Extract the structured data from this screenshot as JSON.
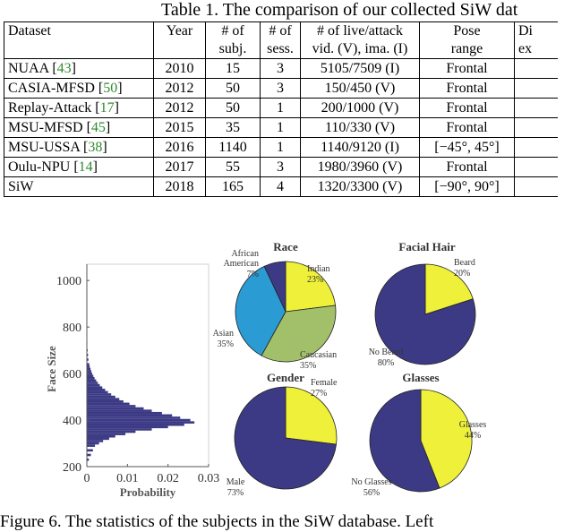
{
  "table": {
    "caption": "Table 1. The comparison of our collected SiW dat",
    "headers": [
      [
        "Dataset"
      ],
      [
        "Year"
      ],
      [
        "# of",
        "subj."
      ],
      [
        "# of",
        "sess."
      ],
      [
        "# of live/attack",
        "vid. (V), ima. (I)"
      ],
      [
        "Pose",
        "range"
      ],
      [
        "Di",
        "ex"
      ]
    ],
    "rows": [
      {
        "name": "NUAA [",
        "ref": "43",
        "close": "]",
        "year": "2010",
        "subj": "15",
        "sess": "3",
        "vid": "5105/7509 (I)",
        "pose": "Frontal"
      },
      {
        "name": "CASIA-MFSD [",
        "ref": "50",
        "close": "]",
        "year": "2012",
        "subj": "50",
        "sess": "3",
        "vid": "150/450 (V)",
        "pose": "Frontal"
      },
      {
        "name": "Replay-Attack [",
        "ref": "17",
        "close": "]",
        "year": "2012",
        "subj": "50",
        "sess": "1",
        "vid": "200/1000 (V)",
        "pose": "Frontal"
      },
      {
        "name": "MSU-MFSD [",
        "ref": "45",
        "close": "]",
        "year": "2015",
        "subj": "35",
        "sess": "1",
        "vid": "110/330 (V)",
        "pose": "Frontal"
      },
      {
        "name": "MSU-USSA [",
        "ref": "38",
        "close": "]",
        "year": "2016",
        "subj": "1140",
        "sess": "1",
        "vid": "1140/9120 (I)",
        "pose": "[−45°, 45°]"
      },
      {
        "name": "Oulu-NPU [",
        "ref": "14",
        "close": "]",
        "year": "2017",
        "subj": "55",
        "sess": "3",
        "vid": "1980/3960 (V)",
        "pose": "Frontal"
      },
      {
        "name": "SiW",
        "ref": "",
        "close": "",
        "year": "2018",
        "subj": "165",
        "sess": "4",
        "vid": "1320/3300 (V)",
        "pose": "[−90°, 90°]"
      }
    ]
  },
  "colors": {
    "navy": "#3c3a85",
    "yellow": "#eef03a",
    "cyan": "#2b9bd3",
    "olive": "#a2bf6a",
    "reference_green": "#2e8b2e"
  },
  "chart_data": [
    {
      "type": "bar",
      "orientation": "horizontal histogram",
      "ylabel": "Face Size",
      "xlabel": "Probability",
      "yticks": [
        "200",
        "400",
        "600",
        "800",
        "1000"
      ],
      "xticks": [
        "0",
        "0.01",
        "0.02",
        "0.03"
      ],
      "ylim": [
        200,
        1070
      ],
      "xlim": [
        0,
        0.03
      ],
      "bins": [
        {
          "y": 230,
          "p": 0.0005
        },
        {
          "y": 250,
          "p": 0.001
        },
        {
          "y": 270,
          "p": 0.0015
        },
        {
          "y": 290,
          "p": 0.002
        },
        {
          "y": 300,
          "p": 0.003
        },
        {
          "y": 310,
          "p": 0.004
        },
        {
          "y": 320,
          "p": 0.0055
        },
        {
          "y": 330,
          "p": 0.007
        },
        {
          "y": 340,
          "p": 0.0095
        },
        {
          "y": 350,
          "p": 0.012
        },
        {
          "y": 360,
          "p": 0.016
        },
        {
          "y": 370,
          "p": 0.02
        },
        {
          "y": 380,
          "p": 0.024
        },
        {
          "y": 390,
          "p": 0.0265
        },
        {
          "y": 400,
          "p": 0.0255
        },
        {
          "y": 410,
          "p": 0.023
        },
        {
          "y": 420,
          "p": 0.021
        },
        {
          "y": 430,
          "p": 0.0185
        },
        {
          "y": 440,
          "p": 0.016
        },
        {
          "y": 450,
          "p": 0.014
        },
        {
          "y": 460,
          "p": 0.012
        },
        {
          "y": 470,
          "p": 0.0105
        },
        {
          "y": 480,
          "p": 0.009
        },
        {
          "y": 490,
          "p": 0.008
        },
        {
          "y": 500,
          "p": 0.007
        },
        {
          "y": 510,
          "p": 0.006
        },
        {
          "y": 520,
          "p": 0.0052
        },
        {
          "y": 530,
          "p": 0.0045
        },
        {
          "y": 540,
          "p": 0.0038
        },
        {
          "y": 550,
          "p": 0.0032
        },
        {
          "y": 560,
          "p": 0.0027
        },
        {
          "y": 570,
          "p": 0.0023
        },
        {
          "y": 580,
          "p": 0.0019
        },
        {
          "y": 590,
          "p": 0.0016
        },
        {
          "y": 600,
          "p": 0.0013
        },
        {
          "y": 610,
          "p": 0.0011
        },
        {
          "y": 620,
          "p": 0.0009
        },
        {
          "y": 630,
          "p": 0.0007
        },
        {
          "y": 640,
          "p": 0.0006
        },
        {
          "y": 660,
          "p": 0.0004
        },
        {
          "y": 680,
          "p": 0.0003
        },
        {
          "y": 700,
          "p": 0.0002
        },
        {
          "y": 730,
          "p": 0.00012
        },
        {
          "y": 760,
          "p": 8e-05
        },
        {
          "y": 800,
          "p": 5e-05
        }
      ]
    },
    {
      "type": "pie",
      "title": "Race",
      "slices": [
        {
          "label": "Indian",
          "value": 23,
          "pct": "23%",
          "color": "#eef03a"
        },
        {
          "label": "Caucasian",
          "value": 35,
          "pct": "35%",
          "color": "#a2bf6a"
        },
        {
          "label": "Asian",
          "value": 35,
          "pct": "35%",
          "color": "#2b9bd3"
        },
        {
          "label": "African American",
          "value": 7,
          "pct": "7%",
          "color": "#3c3a85"
        }
      ]
    },
    {
      "type": "pie",
      "title": "Facial Hair",
      "slices": [
        {
          "label": "Beard",
          "value": 20,
          "pct": "20%",
          "color": "#eef03a"
        },
        {
          "label": "No Beard",
          "value": 80,
          "pct": "80%",
          "color": "#3c3a85"
        }
      ]
    },
    {
      "type": "pie",
      "title": "Gender",
      "slices": [
        {
          "label": "Female",
          "value": 27,
          "pct": "27%",
          "color": "#eef03a"
        },
        {
          "label": "Male",
          "value": 73,
          "pct": "73%",
          "color": "#3c3a85"
        }
      ]
    },
    {
      "type": "pie",
      "title": "Glasses",
      "slices": [
        {
          "label": "Glasses",
          "value": 44,
          "pct": "44%",
          "color": "#eef03a"
        },
        {
          "label": "No Glasses",
          "value": 56,
          "pct": "56%",
          "color": "#3c3a85"
        }
      ]
    }
  ],
  "figure_caption": "Figure 6. The statistics of the subjects in the SiW database. Left"
}
